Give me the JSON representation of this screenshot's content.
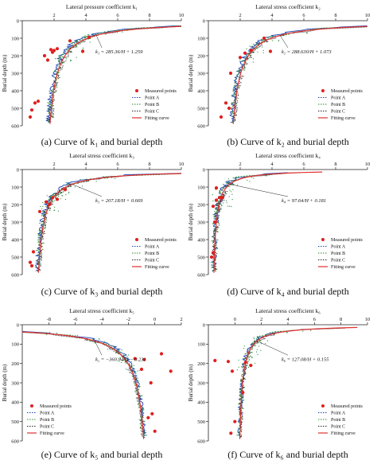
{
  "figure": {
    "background": "#ffffff",
    "colors": {
      "axis": "#222222",
      "measured": "#e02020",
      "fitting": "#e03030",
      "pointA": "#1a44b8",
      "pointB": "#2a8a2a",
      "pointC": "#222222",
      "noise": "#1f8f3a"
    },
    "legend_labels": [
      "Measured points",
      "Point A",
      "Point B",
      "Point C",
      "Fitting curve"
    ]
  },
  "chart_data": [
    {
      "type": "line",
      "panel": "a",
      "caption": "(a) Curve of k₁ and burial depth",
      "title": "Lateral pressure coefficient k₁",
      "ylabel": "Burial depth (m)",
      "xlim": [
        0,
        10
      ],
      "ylim": [
        0,
        600
      ],
      "xticks": [
        2,
        4,
        6,
        8,
        10
      ],
      "yticks": [
        0,
        100,
        200,
        300,
        400,
        500,
        600
      ],
      "formula": [
        "k₁ = 285.36/H + 1.259"
      ],
      "fit": {
        "a": 285.36,
        "b": 1.259
      },
      "measured": [
        [
          0.5,
          550
        ],
        [
          0.6,
          510
        ],
        [
          0.8,
          470
        ],
        [
          1.0,
          460
        ],
        [
          1.4,
          200
        ],
        [
          1.6,
          225
        ],
        [
          1.8,
          165
        ],
        [
          2.2,
          160
        ],
        [
          2.0,
          170
        ],
        [
          3.0,
          115
        ],
        [
          4.2,
          95
        ],
        [
          3.8,
          175
        ],
        [
          1.9,
          180
        ]
      ],
      "series": [
        {
          "name": "Measured points"
        },
        {
          "name": "Point A"
        },
        {
          "name": "Point B"
        },
        {
          "name": "Point C"
        },
        {
          "name": "Fitting curve"
        }
      ]
    },
    {
      "type": "line",
      "panel": "b",
      "caption": "(b) Curve of k₂ and burial depth",
      "title": "Lateral stress coefficient k₂",
      "ylabel": "Burial depth (m)",
      "xlim": [
        0,
        10
      ],
      "ylim": [
        0,
        600
      ],
      "xticks": [
        2,
        4,
        6,
        8,
        10
      ],
      "yticks": [
        0,
        100,
        200,
        300,
        400,
        500,
        600
      ],
      "formula": [
        "k₂ = 288.630/H + 1.073"
      ],
      "fit": {
        "a": 288.63,
        "b": 1.073
      },
      "measured": [
        [
          0.8,
          550
        ],
        [
          1.3,
          500
        ],
        [
          1.1,
          470
        ],
        [
          1.4,
          300
        ],
        [
          2.0,
          210
        ],
        [
          2.3,
          185
        ],
        [
          2.7,
          170
        ],
        [
          3.5,
          100
        ],
        [
          3.9,
          175
        ]
      ],
      "series": [
        {
          "name": "Measured points"
        },
        {
          "name": "Point A"
        },
        {
          "name": "Point B"
        },
        {
          "name": "Point C"
        },
        {
          "name": "Fitting curve"
        }
      ]
    },
    {
      "type": "line",
      "panel": "c",
      "caption": "(c) Curve of k₃ and burial depth",
      "title": "Lateral stress coefficient k₃",
      "ylabel": "Burial depth (m)",
      "xlim": [
        0,
        10
      ],
      "ylim": [
        0,
        600
      ],
      "xticks": [
        2,
        4,
        6,
        8,
        10
      ],
      "yticks": [
        0,
        100,
        200,
        300,
        400,
        500,
        600
      ],
      "formula": [
        "k₃ = 207.18/H + 0.669"
      ],
      "fit": {
        "a": 207.18,
        "b": 0.669
      },
      "measured": [
        [
          0.6,
          550
        ],
        [
          0.5,
          530
        ],
        [
          0.7,
          470
        ],
        [
          1.1,
          240
        ],
        [
          1.5,
          185
        ],
        [
          1.9,
          160
        ],
        [
          2.7,
          115
        ],
        [
          2.2,
          170
        ],
        [
          1.7,
          200
        ]
      ],
      "series": [
        {
          "name": "Measured points"
        },
        {
          "name": "Point A"
        },
        {
          "name": "Point B"
        },
        {
          "name": "Point C"
        },
        {
          "name": "Fitting curve"
        }
      ]
    },
    {
      "type": "line",
      "panel": "d",
      "caption": "(d) Curve of k₄ and burial depth",
      "title": "Lateral stress coefficient k₄",
      "ylabel": "Burial depth (m)",
      "xlim": [
        0,
        10
      ],
      "ylim": [
        0,
        600
      ],
      "xticks": [
        2,
        4,
        6,
        8,
        10
      ],
      "yticks": [
        0,
        100,
        200,
        300,
        400,
        500,
        600
      ],
      "formula": [
        "k₄ = 97.64/H + 0.181"
      ],
      "fit": {
        "a": 97.64,
        "b": 0.181
      },
      "measured": [
        [
          0.2,
          500
        ],
        [
          0.3,
          475
        ],
        [
          0.4,
          300
        ],
        [
          0.5,
          175
        ],
        [
          0.7,
          160
        ],
        [
          0.9,
          160
        ],
        [
          0.5,
          105
        ],
        [
          0.3,
          210
        ]
      ],
      "series": [
        {
          "name": "Measured points"
        },
        {
          "name": "Point A"
        },
        {
          "name": "Point B"
        },
        {
          "name": "Point C"
        },
        {
          "name": "Fitting curve"
        }
      ]
    },
    {
      "type": "line",
      "panel": "e",
      "caption": "(e) Curve of k₅ and burial depth",
      "title": "Lateral stress coefficient k₅",
      "ylabel": "Burial depth (m)",
      "xlim": [
        -10,
        2
      ],
      "ylim": [
        0,
        600
      ],
      "xticks": [
        -8,
        -6,
        -4,
        -2,
        0,
        2
      ],
      "yticks": [
        0,
        100,
        200,
        300,
        400,
        500,
        600
      ],
      "formula": [
        "k₅ = −360.94/H − 0.231"
      ],
      "fit": {
        "a": -360.94,
        "b": -0.231
      },
      "measured": [
        [
          -1.5,
          175
        ],
        [
          -1.0,
          230
        ],
        [
          0.5,
          150
        ],
        [
          1.2,
          240
        ],
        [
          -0.3,
          300
        ],
        [
          -0.2,
          460
        ],
        [
          -0.5,
          480
        ],
        [
          0.0,
          550
        ],
        [
          -0.8,
          180
        ]
      ],
      "series": [
        {
          "name": "Measured points"
        },
        {
          "name": "Point A"
        },
        {
          "name": "Point B"
        },
        {
          "name": "Point C"
        },
        {
          "name": "Fitting curve"
        }
      ]
    },
    {
      "type": "line",
      "panel": "f",
      "caption": "(f) Curve of k₆ and burial depth",
      "title": "Lateral stress coefficient k₆",
      "ylabel": "Burial depth (m)",
      "xlim": [
        -2,
        10
      ],
      "ylim": [
        0,
        600
      ],
      "xticks": [
        0,
        2,
        4,
        6,
        8,
        10
      ],
      "yticks": [
        0,
        100,
        200,
        300,
        400,
        500,
        600
      ],
      "formula": [
        "k₆ = 127.08/H + 0.155"
      ],
      "fit": {
        "a": 127.08,
        "b": 0.155
      },
      "measured": [
        [
          -1.5,
          185
        ],
        [
          -0.5,
          190
        ],
        [
          -0.2,
          240
        ],
        [
          0.8,
          195
        ],
        [
          1.2,
          210
        ],
        [
          0.6,
          350
        ],
        [
          0.0,
          500
        ],
        [
          -0.3,
          560
        ]
      ],
      "series": [
        {
          "name": "Measured points"
        },
        {
          "name": "Point A"
        },
        {
          "name": "Point B"
        },
        {
          "name": "Point C"
        },
        {
          "name": "Fitting curve"
        }
      ]
    }
  ]
}
